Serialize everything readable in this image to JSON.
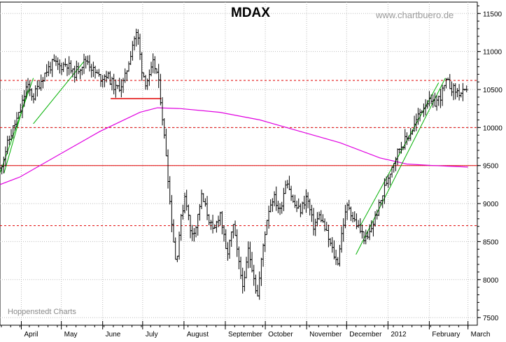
{
  "chart_data": {
    "type": "line",
    "style": "ohlc-bars",
    "title": "MDAX",
    "watermark": "www.chartbuero.de",
    "credit": "Hoppenstedt Charts",
    "x_labels": [
      {
        "label": "April",
        "day": 1
      },
      {
        "label": "May",
        "day": 31
      },
      {
        "label": "June",
        "day": 62
      },
      {
        "label": "July",
        "day": 92
      },
      {
        "label": "August",
        "day": 123
      },
      {
        "label": "September",
        "day": 154
      },
      {
        "label": "October",
        "day": 184
      },
      {
        "label": "November",
        "day": 215
      },
      {
        "label": "December",
        "day": 245
      },
      {
        "label": "2012",
        "day": 276
      },
      {
        "label": "February",
        "day": 307
      },
      {
        "label": "March",
        "day": 336
      }
    ],
    "y_ticks": [
      7500,
      8000,
      8500,
      9000,
      9500,
      10000,
      10500,
      11000,
      11500
    ],
    "ylim": [
      7400,
      11650
    ],
    "price_path": [
      [
        -15,
        9450
      ],
      [
        -10,
        9750
      ],
      [
        -5,
        10000
      ],
      [
        0,
        10200
      ],
      [
        5,
        10550
      ],
      [
        10,
        10400
      ],
      [
        15,
        10600
      ],
      [
        20,
        10750
      ],
      [
        25,
        10850
      ],
      [
        30,
        10800
      ],
      [
        35,
        10850
      ],
      [
        40,
        10700
      ],
      [
        50,
        10900
      ],
      [
        55,
        10750
      ],
      [
        60,
        10650
      ],
      [
        65,
        10700
      ],
      [
        72,
        10500
      ],
      [
        78,
        10600
      ],
      [
        82,
        10900
      ],
      [
        85,
        11150
      ],
      [
        88,
        11250
      ],
      [
        91,
        10800
      ],
      [
        94,
        10600
      ],
      [
        97,
        10650
      ],
      [
        100,
        10850
      ],
      [
        103,
        10700
      ],
      [
        106,
        10300
      ],
      [
        108,
        9900
      ],
      [
        110,
        9600
      ],
      [
        112,
        9100
      ],
      [
        115,
        8550
      ],
      [
        117,
        8200
      ],
      [
        120,
        8700
      ],
      [
        124,
        9150
      ],
      [
        128,
        8600
      ],
      [
        132,
        8700
      ],
      [
        136,
        9100
      ],
      [
        140,
        8900
      ],
      [
        145,
        8600
      ],
      [
        150,
        8900
      ],
      [
        155,
        8300
      ],
      [
        160,
        8700
      ],
      [
        165,
        8100
      ],
      [
        168,
        7900
      ],
      [
        171,
        8400
      ],
      [
        175,
        8100
      ],
      [
        178,
        7750
      ],
      [
        182,
        8400
      ],
      [
        186,
        8900
      ],
      [
        190,
        9100
      ],
      [
        195,
        8900
      ],
      [
        200,
        9350
      ],
      [
        205,
        9000
      ],
      [
        210,
        8900
      ],
      [
        215,
        9100
      ],
      [
        220,
        8700
      ],
      [
        225,
        8850
      ],
      [
        230,
        8600
      ],
      [
        235,
        8350
      ],
      [
        238,
        8200
      ],
      [
        242,
        8700
      ],
      [
        246,
        9000
      ],
      [
        250,
        8800
      ],
      [
        255,
        8650
      ],
      [
        260,
        8500
      ],
      [
        265,
        8750
      ],
      [
        270,
        9000
      ],
      [
        275,
        9300
      ],
      [
        280,
        9550
      ],
      [
        285,
        9750
      ],
      [
        290,
        9850
      ],
      [
        295,
        10000
      ],
      [
        300,
        10200
      ],
      [
        305,
        10350
      ],
      [
        310,
        10300
      ],
      [
        315,
        10400
      ],
      [
        320,
        10600
      ],
      [
        325,
        10500
      ],
      [
        330,
        10450
      ],
      [
        336,
        10450
      ]
    ],
    "moving_average": [
      [
        -15,
        9250
      ],
      [
        0,
        9350
      ],
      [
        30,
        9650
      ],
      [
        60,
        9950
      ],
      [
        90,
        10200
      ],
      [
        103,
        10260
      ],
      [
        120,
        10250
      ],
      [
        150,
        10200
      ],
      [
        180,
        10100
      ],
      [
        210,
        9950
      ],
      [
        240,
        9800
      ],
      [
        270,
        9600
      ],
      [
        290,
        9520
      ],
      [
        310,
        9500
      ],
      [
        336,
        9480
      ]
    ],
    "trendlines": [
      {
        "x1": -15,
        "y1": 9400,
        "x2": 10,
        "y2": 10650
      },
      {
        "x1": -12,
        "y1": 9400,
        "x2": 6,
        "y2": 10500
      },
      {
        "x1": 10,
        "y1": 10050,
        "x2": 48,
        "y2": 10870
      },
      {
        "x1": 252,
        "y1": 8330,
        "x2": 319,
        "y2": 10650
      },
      {
        "x1": 255,
        "y1": 8700,
        "x2": 314,
        "y2": 10590
      }
    ],
    "horizontal_levels": [
      10620,
      10000,
      9500,
      8710
    ],
    "support_line": {
      "x1": 68,
      "x2": 106,
      "y": 10380
    },
    "colors": {
      "price": "#000000",
      "moving_average": "#e000e0",
      "trendline": "#00b000",
      "levels": "#e00000",
      "grid": "#bdbdbd"
    }
  }
}
